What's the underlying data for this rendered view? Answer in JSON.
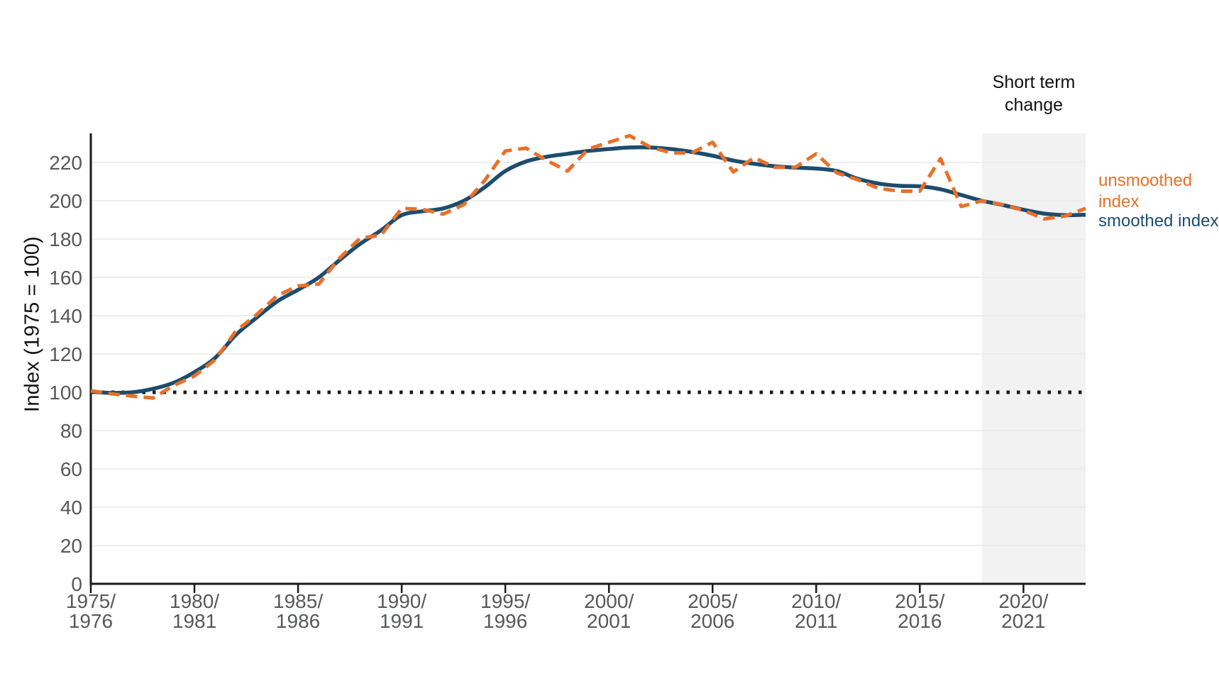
{
  "chart_data": {
    "type": "line",
    "title": "",
    "ylabel": "Index (1975 = 100)",
    "xlabel": "",
    "grid": true,
    "ylim": [
      0,
      235
    ],
    "yticks": [
      0,
      20,
      40,
      60,
      80,
      100,
      120,
      140,
      160,
      180,
      200,
      220
    ],
    "x": [
      1975,
      1976,
      1977,
      1978,
      1979,
      1980,
      1981,
      1982,
      1983,
      1984,
      1985,
      1986,
      1987,
      1988,
      1989,
      1990,
      1991,
      1992,
      1993,
      1994,
      1995,
      1996,
      1997,
      1998,
      1999,
      2000,
      2001,
      2002,
      2003,
      2004,
      2005,
      2006,
      2007,
      2008,
      2009,
      2010,
      2011,
      2012,
      2013,
      2014,
      2015,
      2016,
      2017,
      2018,
      2019,
      2020,
      2021,
      2022,
      2023
    ],
    "x_ticks": [
      {
        "year": 1975,
        "line1": "1975/",
        "line2": "1976"
      },
      {
        "year": 1980,
        "line1": "1980/",
        "line2": "1981"
      },
      {
        "year": 1985,
        "line1": "1985/",
        "line2": "1986"
      },
      {
        "year": 1990,
        "line1": "1990/",
        "line2": "1991"
      },
      {
        "year": 1995,
        "line1": "1995/",
        "line2": "1996"
      },
      {
        "year": 2000,
        "line1": "2000/",
        "line2": "2001"
      },
      {
        "year": 2005,
        "line1": "2005/",
        "line2": "2006"
      },
      {
        "year": 2010,
        "line1": "2010/",
        "line2": "2011"
      },
      {
        "year": 2015,
        "line1": "2015/",
        "line2": "2016"
      },
      {
        "year": 2020,
        "line1": "2020/",
        "line2": "2021"
      }
    ],
    "series": [
      {
        "name": "unsmoothed index",
        "label_line1": "unsmoothed",
        "label_line2": "index",
        "style": "dashed",
        "color": "#e8702a",
        "values": [
          100.8,
          99.2,
          98,
          97,
          103.5,
          108.5,
          117,
          132,
          140.5,
          150.5,
          155.5,
          156.5,
          170,
          180.5,
          182,
          196,
          195.5,
          193,
          198,
          210.5,
          226,
          227.5,
          221,
          215.5,
          227,
          230.5,
          234,
          228,
          225,
          225,
          230.5,
          215,
          222.5,
          217.5,
          217.5,
          224.5,
          214.5,
          211,
          206.5,
          205,
          205,
          222,
          197,
          200,
          198,
          195,
          190.5,
          192,
          196
        ]
      },
      {
        "name": "smoothed index",
        "style": "solid",
        "color": "#1d4d6d",
        "values": [
          100.3,
          99.7,
          100,
          101.8,
          105,
          110.5,
          118,
          130,
          139,
          147.5,
          153.5,
          160,
          169,
          177.5,
          184.5,
          192.5,
          194.5,
          196,
          200,
          207,
          215.5,
          220.5,
          223,
          224.5,
          226,
          227,
          227.8,
          227.8,
          227,
          225.5,
          223.5,
          221,
          219.3,
          218,
          217.3,
          216.8,
          215.5,
          211.5,
          209,
          207.8,
          207.5,
          206,
          203,
          200,
          197.8,
          195.3,
          193.3,
          192.5,
          192.7
        ]
      }
    ],
    "reference_line": {
      "value": 100,
      "style": "dotted",
      "color": "#1a1a1a"
    },
    "shaded_region": {
      "label_line1": "Short term",
      "label_line2": "change",
      "x_start": 2018,
      "x_end": 2023,
      "color": "#f2f2f2"
    },
    "legend_position": "right",
    "colors": {
      "axis": "#1a1a1a",
      "gridline": "#e9e9e9",
      "tick_label": "#57585a",
      "unsmoothed": "#e8702a",
      "smoothed": "#1d4d6d"
    }
  }
}
